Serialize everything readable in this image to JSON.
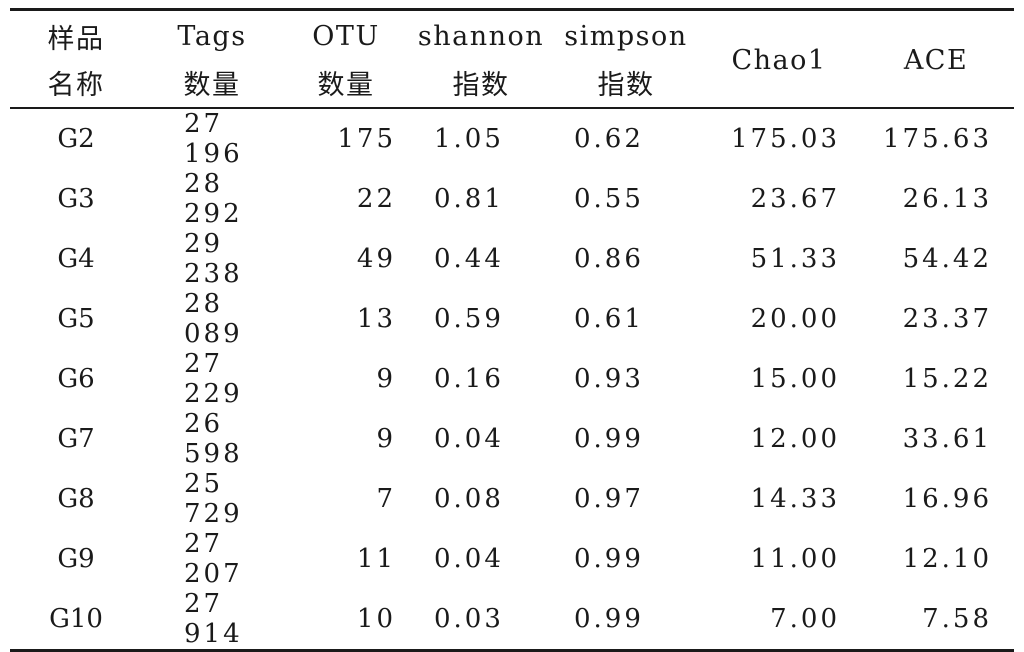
{
  "table": {
    "header": {
      "sample": [
        "样品",
        "名称"
      ],
      "tags": [
        "Tags",
        "数量"
      ],
      "otu": [
        "OTU",
        "数量"
      ],
      "shannon": [
        "shannon",
        "指数"
      ],
      "simpson": [
        "simpson",
        "指数"
      ],
      "chao1": "Chao1",
      "ace": "ACE"
    },
    "rows": [
      {
        "sample": "G2",
        "tags": "27 196",
        "otu": "175",
        "shannon": "1.05",
        "simpson": "0.62",
        "chao1": "175.03",
        "ace": "175.63"
      },
      {
        "sample": "G3",
        "tags": "28 292",
        "otu": "22",
        "shannon": "0.81",
        "simpson": "0.55",
        "chao1": "23.67",
        "ace": "26.13"
      },
      {
        "sample": "G4",
        "tags": "29 238",
        "otu": "49",
        "shannon": "0.44",
        "simpson": "0.86",
        "chao1": "51.33",
        "ace": "54.42"
      },
      {
        "sample": "G5",
        "tags": "28 089",
        "otu": "13",
        "shannon": "0.59",
        "simpson": "0.61",
        "chao1": "20.00",
        "ace": "23.37"
      },
      {
        "sample": "G6",
        "tags": "27 229",
        "otu": "9",
        "shannon": "0.16",
        "simpson": "0.93",
        "chao1": "15.00",
        "ace": "15.22"
      },
      {
        "sample": "G7",
        "tags": "26 598",
        "otu": "9",
        "shannon": "0.04",
        "simpson": "0.99",
        "chao1": "12.00",
        "ace": "33.61"
      },
      {
        "sample": "G8",
        "tags": "25 729",
        "otu": "7",
        "shannon": "0.08",
        "simpson": "0.97",
        "chao1": "14.33",
        "ace": "16.96"
      },
      {
        "sample": "G9",
        "tags": "27 207",
        "otu": "11",
        "shannon": "0.04",
        "simpson": "0.99",
        "chao1": "11.00",
        "ace": "12.10"
      },
      {
        "sample": "G10",
        "tags": "27 914",
        "otu": "10",
        "shannon": "0.03",
        "simpson": "0.99",
        "chao1": "7.00",
        "ace": "7.58"
      }
    ]
  }
}
